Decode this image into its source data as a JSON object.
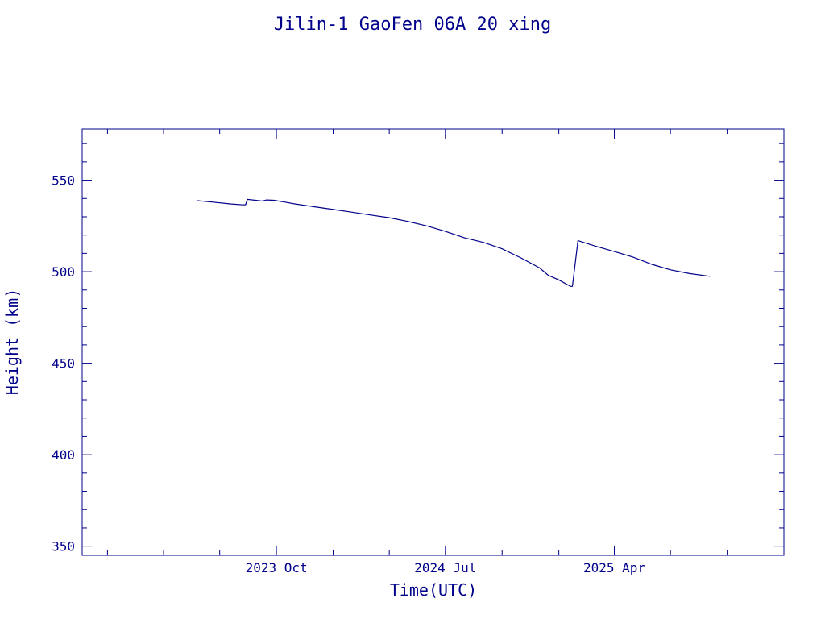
{
  "chart_data": {
    "type": "line",
    "title": "Jilin-1 GaoFen 06A 20 xing",
    "xlabel": "Time(UTC)",
    "ylabel": "Height (km)",
    "xlim": [
      "2022-11-20",
      "2026-01-01"
    ],
    "ylim": [
      345,
      578
    ],
    "x_ticks": [
      {
        "date": "2023-10-01",
        "label": "2023 Oct"
      },
      {
        "date": "2024-07-01",
        "label": "2024 Jul"
      },
      {
        "date": "2025-04-01",
        "label": "2025 Apr"
      }
    ],
    "x_minor_tick_dates": [
      "2022-12-31",
      "2023-04-01",
      "2023-07-01",
      "2024-01-01",
      "2024-04-01",
      "2024-10-01",
      "2025-01-01",
      "2025-07-01",
      "2025-10-01"
    ],
    "y_ticks": [
      350,
      400,
      450,
      500,
      550
    ],
    "y_minor_step": 10,
    "grid": false,
    "series": [
      {
        "color": "#00008b",
        "points": [
          [
            "2023-05-26",
            538.8
          ],
          [
            "2023-06-20",
            538.0
          ],
          [
            "2023-07-20",
            537.0
          ],
          [
            "2023-08-08",
            536.5
          ],
          [
            "2023-08-12",
            536.6
          ],
          [
            "2023-08-15",
            539.5
          ],
          [
            "2023-08-28",
            539.0
          ],
          [
            "2023-09-08",
            538.6
          ],
          [
            "2023-09-15",
            539.2
          ],
          [
            "2023-09-27",
            539.0
          ],
          [
            "2023-10-15",
            538.0
          ],
          [
            "2023-11-01",
            537.0
          ],
          [
            "2023-12-01",
            535.5
          ],
          [
            "2024-01-01",
            534.0
          ],
          [
            "2024-02-01",
            532.5
          ],
          [
            "2024-03-01",
            531.0
          ],
          [
            "2024-04-01",
            529.5
          ],
          [
            "2024-05-01",
            527.5
          ],
          [
            "2024-06-01",
            525.0
          ],
          [
            "2024-07-01",
            522.0
          ],
          [
            "2024-08-01",
            518.5
          ],
          [
            "2024-09-01",
            516.0
          ],
          [
            "2024-10-01",
            512.5
          ],
          [
            "2024-11-01",
            507.5
          ],
          [
            "2024-12-01",
            502.0
          ],
          [
            "2024-12-15",
            498.0
          ],
          [
            "2025-01-01",
            495.5
          ],
          [
            "2025-01-20",
            492.0
          ],
          [
            "2025-01-23",
            492.0
          ],
          [
            "2025-02-01",
            517.0
          ],
          [
            "2025-02-15",
            515.5
          ],
          [
            "2025-03-01",
            514.0
          ],
          [
            "2025-04-01",
            511.0
          ],
          [
            "2025-05-01",
            508.0
          ],
          [
            "2025-06-01",
            504.0
          ],
          [
            "2025-07-01",
            501.0
          ],
          [
            "2025-08-01",
            499.0
          ],
          [
            "2025-09-03",
            497.5
          ]
        ]
      }
    ]
  }
}
